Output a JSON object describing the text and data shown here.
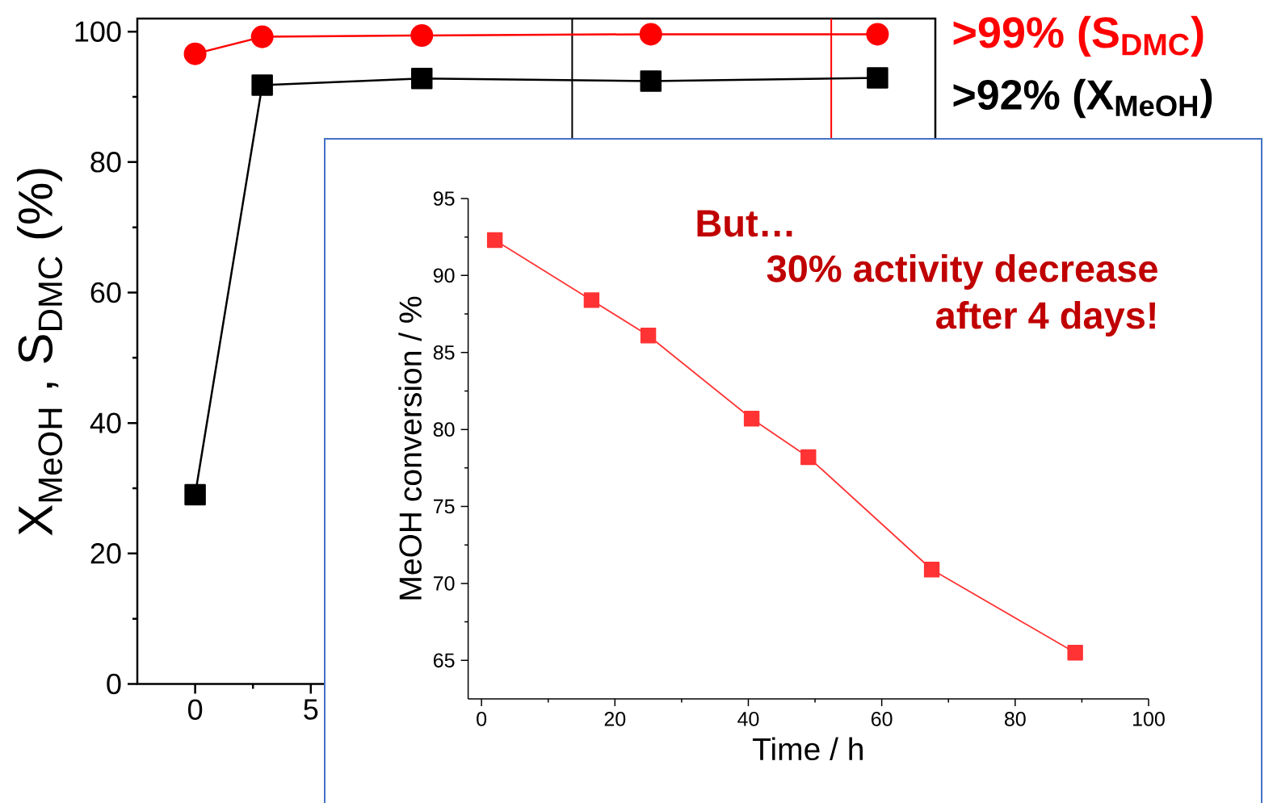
{
  "chart_data": [
    {
      "type": "line",
      "ylabel": "X$_{MeOH}$ , S$_{DMC}$ (%)",
      "x": [
        0,
        2.9,
        9.8,
        19.7,
        29.5
      ],
      "xlim": [
        -2.5,
        32
      ],
      "ylim": [
        0,
        102
      ],
      "xticks": [
        0,
        5
      ],
      "yticks": [
        0,
        20,
        40,
        60,
        80,
        100
      ],
      "series": [
        {
          "color": "#ff0000",
          "marker": "circle",
          "values": [
            96.6,
            99.2,
            99.4,
            99.6,
            99.6
          ]
        },
        {
          "color": "#000000",
          "marker": "square",
          "values": [
            29.0,
            91.8,
            92.8,
            92.4,
            92.9
          ]
        }
      ],
      "ref_lines": [
        {
          "axis": "x",
          "value": 16.3,
          "color": "#000000"
        },
        {
          "axis": "x",
          "value": 27.5,
          "color": "#ff0000"
        }
      ],
      "annotations": [
        ">99% (S$_{DMC}$)",
        ">92% (X$_{MeOH}$)"
      ]
    },
    {
      "type": "line",
      "xlabel": "Time / h",
      "ylabel": "MeOH conversion / %",
      "x": [
        2.0,
        16.5,
        25.0,
        40.5,
        49.0,
        67.5,
        89.0
      ],
      "xlim": [
        -2,
        100
      ],
      "ylim": [
        62.5,
        95
      ],
      "xticks": [
        0,
        20,
        40,
        60,
        80,
        100
      ],
      "yticks": [
        65,
        70,
        75,
        80,
        85,
        90,
        95
      ],
      "series": [
        {
          "color": "#ff3333",
          "marker": "square",
          "values": [
            92.3,
            88.4,
            86.1,
            80.7,
            78.2,
            70.9,
            65.5
          ]
        }
      ],
      "annotations": [
        "But…",
        "30% activity decrease",
        "after 4 days!"
      ]
    }
  ]
}
